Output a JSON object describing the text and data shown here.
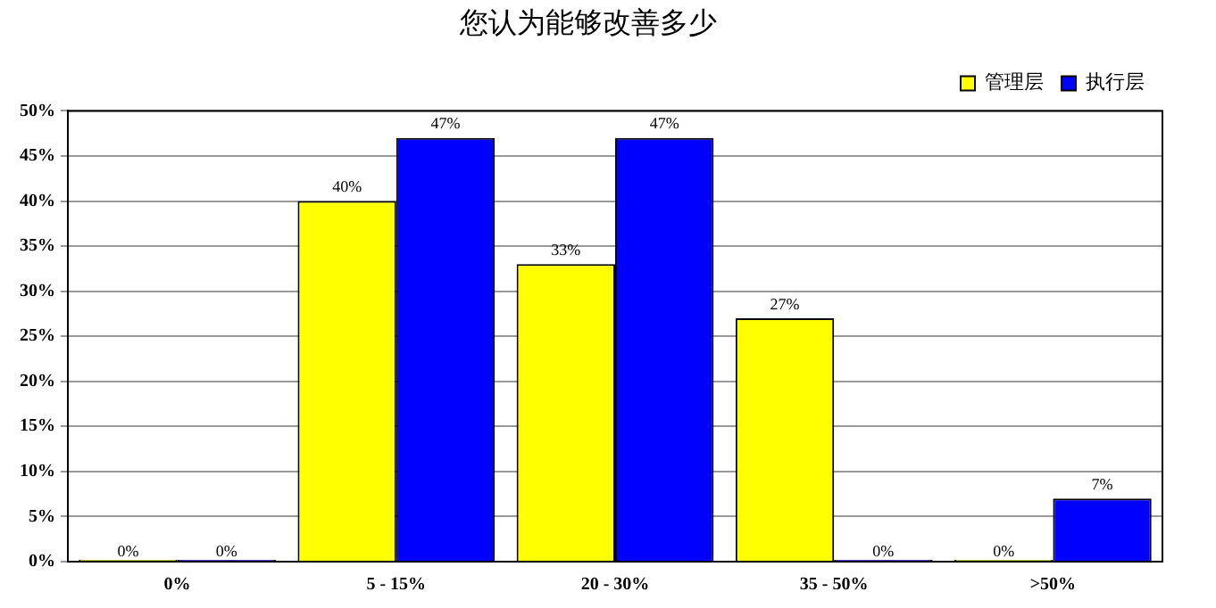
{
  "chart_data": {
    "type": "bar",
    "title": "您认为能够改善多少",
    "categories": [
      "0%",
      "5 - 15%",
      "20 - 30%",
      "35 - 50%",
      ">50%"
    ],
    "series": [
      {
        "name": "管理层",
        "color": "#ffff00",
        "values": [
          0,
          40,
          33,
          27,
          0
        ],
        "value_labels": [
          "0%",
          "40%",
          "33%",
          "27%",
          "0%"
        ]
      },
      {
        "name": "执行层",
        "color": "#0000ff",
        "values": [
          0,
          47,
          47,
          0,
          7
        ],
        "value_labels": [
          "0%",
          "47%",
          "47%",
          "0%",
          "7%"
        ]
      }
    ],
    "ylim": [
      0,
      50
    ],
    "yticks": [
      {
        "value": 0,
        "label": "0%"
      },
      {
        "value": 5,
        "label": "5%"
      },
      {
        "value": 10,
        "label": "10%"
      },
      {
        "value": 15,
        "label": "15%"
      },
      {
        "value": 20,
        "label": "20%"
      },
      {
        "value": 25,
        "label": "25%"
      },
      {
        "value": 30,
        "label": "30%"
      },
      {
        "value": 35,
        "label": "35%"
      },
      {
        "value": 40,
        "label": "40%"
      },
      {
        "value": 45,
        "label": "45%"
      },
      {
        "value": 50,
        "label": "50%"
      }
    ],
    "grid": "y",
    "legend": "top right"
  }
}
